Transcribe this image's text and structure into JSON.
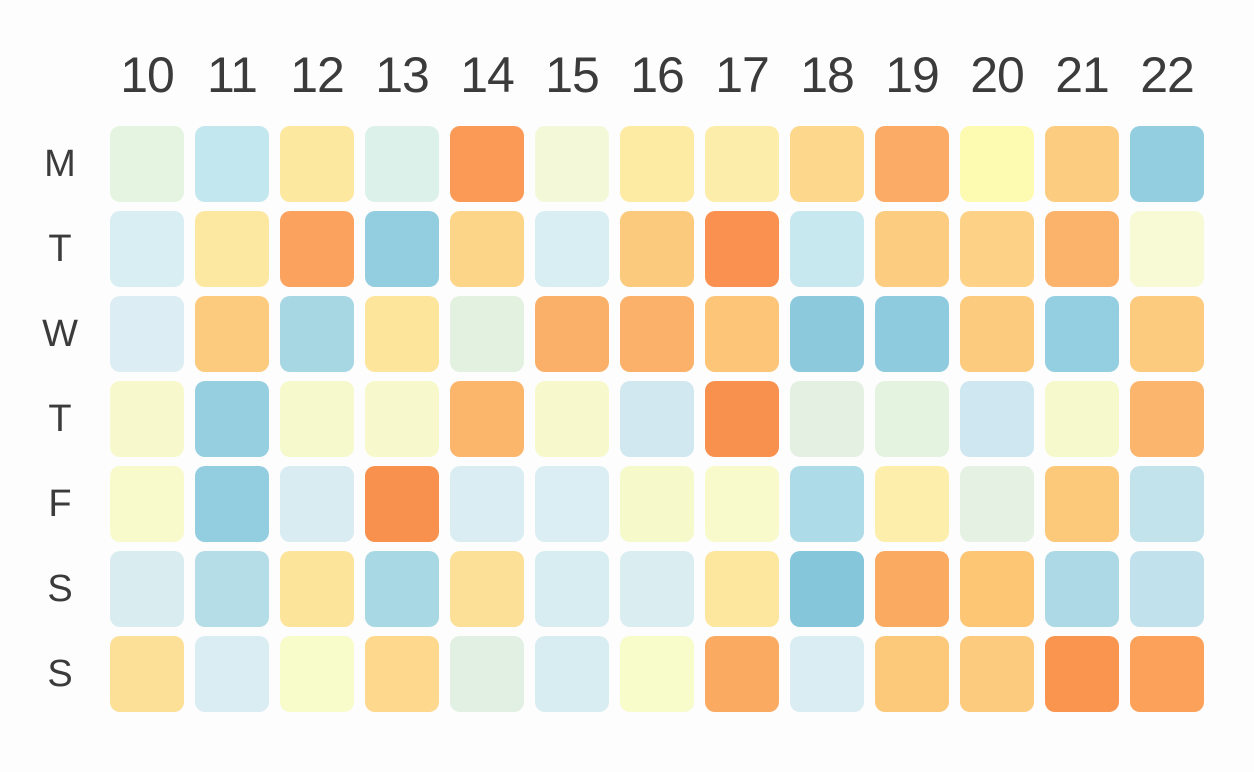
{
  "page": {
    "background": "#fdfdfd",
    "text_color": "#3b3b3b"
  },
  "chart_data": {
    "type": "heatmap",
    "title": "",
    "xlabel": "",
    "ylabel": "",
    "legend": "none",
    "grid": "off",
    "x_ticks": [
      "10",
      "11",
      "12",
      "13",
      "14",
      "15",
      "16",
      "17",
      "18",
      "19",
      "20",
      "21",
      "22"
    ],
    "y_ticks": [
      "M",
      "T",
      "W",
      "T",
      "F",
      "S",
      "S"
    ],
    "color_scale": {
      "description": "cool (blue) to hot (orange), diverging through green/yellow",
      "cool_end": "#85c6da",
      "mid": "#f8fbca",
      "hot_end": "#fa9150"
    },
    "cell_colors": [
      [
        "#e4f4e0",
        "#c2e7ef",
        "#fde8a0",
        "#ddf1eb",
        "#fb9a57",
        "#f2f8d8",
        "#fdeaa3",
        "#fdedaa",
        "#fdd78c",
        "#fcab66",
        "#fdfbb2",
        "#fccc80",
        "#92cde0"
      ],
      [
        "#d9eef3",
        "#fde8a2",
        "#fba25e",
        "#92cde0",
        "#fdd588",
        "#d9eef3",
        "#fcca7c",
        "#fa9150",
        "#c8e8f0",
        "#fccd80",
        "#fdd287",
        "#fbb26a",
        "#f7fad4"
      ],
      [
        "#dceef3",
        "#fdcb7d",
        "#a6d7e3",
        "#fde59c",
        "#e3f2e0",
        "#fbb069",
        "#fbb169",
        "#fcc577",
        "#8dc9dd",
        "#8fcbde",
        "#fccb7d",
        "#93cfe0",
        "#fdcb7e"
      ],
      [
        "#f7f9cc",
        "#96cfe0",
        "#f6f9cb",
        "#f7f9cd",
        "#fcb66c",
        "#f7f9cc",
        "#d2e8f1",
        "#f9914e",
        "#e4f1e2",
        "#e4f2e0",
        "#cfe7f0",
        "#f6f9cc",
        "#fcb56c"
      ],
      [
        "#f8facc",
        "#92cde0",
        "#d8ecf2",
        "#f9914e",
        "#d9edf3",
        "#daeef3",
        "#f6f9ca",
        "#f8facc",
        "#addbe7",
        "#fdefab",
        "#e4f1e3",
        "#fcc97b",
        "#c2e3ec"
      ],
      [
        "#d9edf1",
        "#b5dde8",
        "#fde49b",
        "#a9d8e5",
        "#fde097",
        "#d8edf2",
        "#daeef2",
        "#fde79e",
        "#85c6da",
        "#fbaa62",
        "#fcc675",
        "#add9e6",
        "#c1e2ec"
      ],
      [
        "#fde098",
        "#d9edf2",
        "#f8fbca",
        "#fdd88d",
        "#e2f0e4",
        "#d8edf2",
        "#f8fbca",
        "#fbaa61",
        "#d9edf2",
        "#fcc97a",
        "#fccb7d",
        "#f9954f",
        "#fba159"
      ]
    ]
  }
}
